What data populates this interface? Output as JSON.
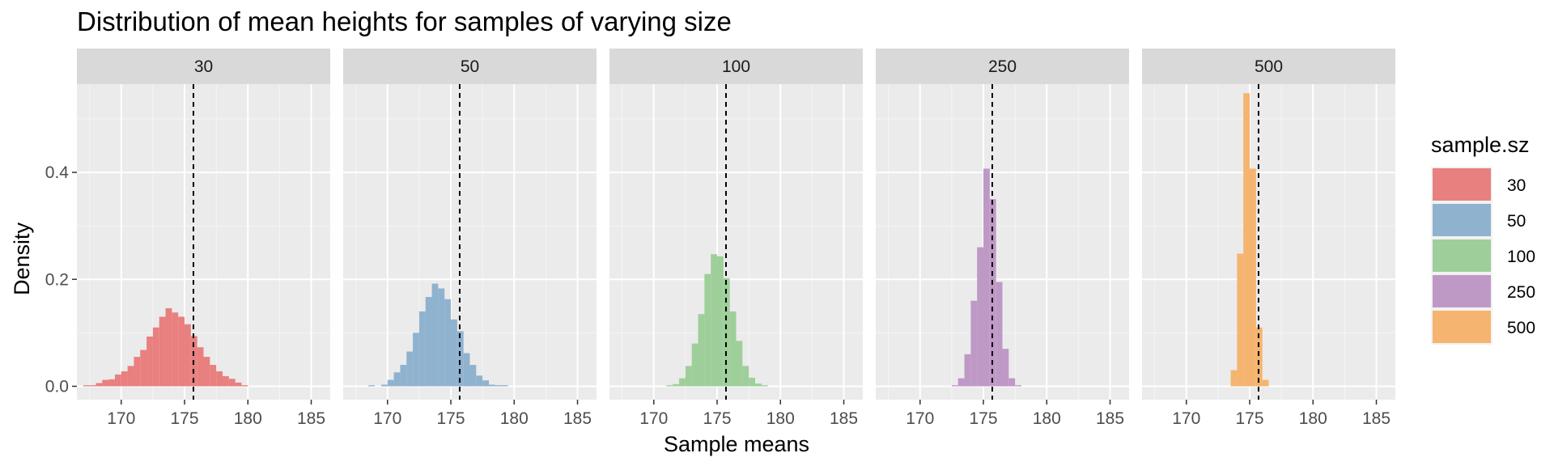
{
  "chart_data": {
    "type": "histogram",
    "title": "Distribution of mean heights for samples of varying size",
    "xlabel": "Sample means",
    "ylabel": "Density",
    "xlim": [
      166.5,
      186.5
    ],
    "ylim": [
      -0.025,
      0.565
    ],
    "x_ticks": [
      170,
      175,
      180,
      185
    ],
    "y_ticks": [
      0.0,
      0.2,
      0.4
    ],
    "y_tick_labels": [
      "0.0",
      "0.2",
      "0.4"
    ],
    "reference_line_x": 175.7,
    "reference_line_style": "dashed",
    "grid": true,
    "bin_width": 0.5,
    "legend": {
      "title": "sample.sz",
      "position": "right",
      "items": [
        {
          "label": "30",
          "color": "#E8807F"
        },
        {
          "label": "50",
          "color": "#8FB2CF"
        },
        {
          "label": "100",
          "color": "#9ECF9A"
        },
        {
          "label": "250",
          "color": "#BF99C6"
        },
        {
          "label": "500",
          "color": "#F5B46F"
        }
      ]
    },
    "panels": [
      {
        "label": "30",
        "color": "#E8807F",
        "bin_start": 167.0,
        "values": [
          0.002,
          0.002,
          0.006,
          0.012,
          0.013,
          0.022,
          0.028,
          0.038,
          0.055,
          0.068,
          0.093,
          0.11,
          0.13,
          0.146,
          0.138,
          0.13,
          0.116,
          0.094,
          0.073,
          0.055,
          0.04,
          0.028,
          0.019,
          0.014,
          0.007,
          0.002
        ]
      },
      {
        "label": "50",
        "color": "#8FB2CF",
        "bin_start": 168.5,
        "values": [
          0.002,
          0.0,
          0.003,
          0.012,
          0.026,
          0.04,
          0.065,
          0.1,
          0.14,
          0.167,
          0.192,
          0.183,
          0.163,
          0.125,
          0.103,
          0.062,
          0.04,
          0.02,
          0.011,
          0.003,
          0.002,
          0.002
        ]
      },
      {
        "label": "100",
        "color": "#9ECF9A",
        "bin_start": 171.0,
        "values": [
          0.002,
          0.004,
          0.015,
          0.038,
          0.08,
          0.135,
          0.21,
          0.247,
          0.243,
          0.202,
          0.14,
          0.085,
          0.038,
          0.016,
          0.005,
          0.002
        ]
      },
      {
        "label": "250",
        "color": "#BF99C6",
        "bin_start": 172.5,
        "values": [
          0.002,
          0.015,
          0.06,
          0.16,
          0.26,
          0.407,
          0.35,
          0.195,
          0.07,
          0.015,
          0.002
        ]
      },
      {
        "label": "500",
        "color": "#F5B46F",
        "bin_start": 173.5,
        "values": [
          0.03,
          0.248,
          0.548,
          0.407,
          0.11,
          0.012
        ]
      }
    ]
  }
}
